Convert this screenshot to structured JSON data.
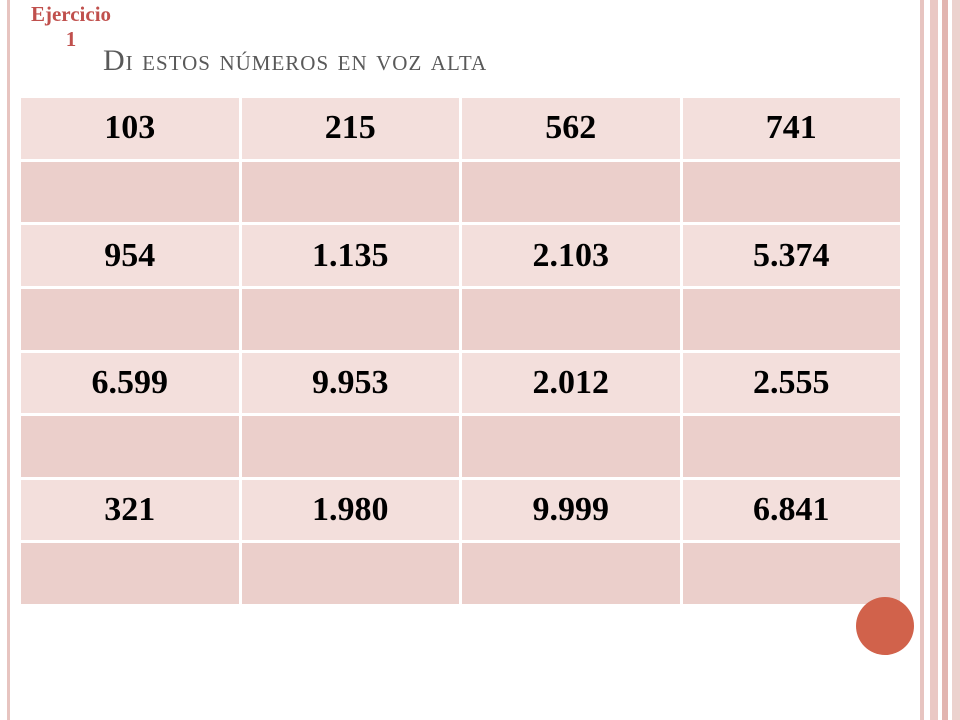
{
  "header": {
    "label": "Ejercicio 1",
    "title": "Di estos números en voz alta"
  },
  "table": {
    "rows": [
      [
        "103",
        "215",
        "562",
        "741"
      ],
      [
        "954",
        "1.135",
        "2.103",
        "5.374"
      ],
      [
        "6.599",
        "9.953",
        "2.012",
        "2.555"
      ],
      [
        "321",
        "1.980",
        "9.999",
        "6.841"
      ]
    ]
  }
}
